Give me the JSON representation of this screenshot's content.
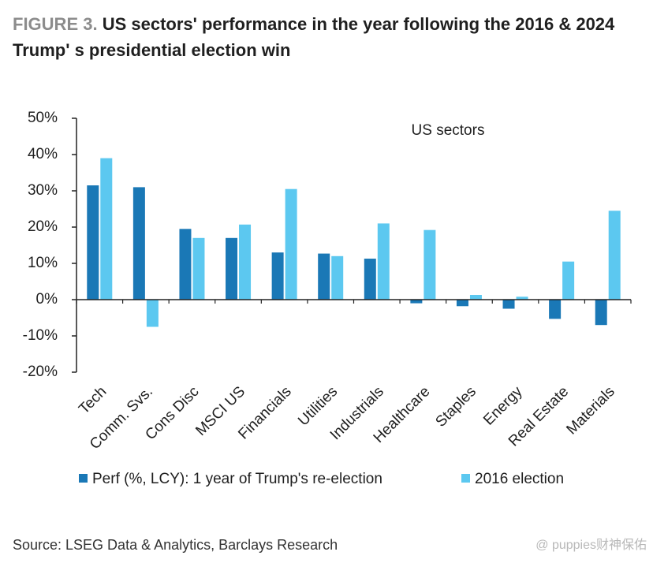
{
  "chart_data": {
    "type": "bar",
    "title_label": "FIGURE 3.",
    "title": "US sectors' performance in the year following the 2016 & 2024 Trump' s presidential election win",
    "annotation": "US sectors",
    "categories": [
      "Tech",
      "Comm. Svs.",
      "Cons Disc",
      "MSCI US",
      "Financials",
      "Utilities",
      "Industrials",
      "Healthcare",
      "Staples",
      "Energy",
      "Real Estate",
      "Materials"
    ],
    "series": [
      {
        "name": "Perf (%, LCY): 1 year of Trump's re-election",
        "color": "#1a78b6",
        "values": [
          31.5,
          31,
          19.5,
          17,
          13,
          12.7,
          11.3,
          -1,
          -1.8,
          -2.5,
          -5.3,
          -7
        ]
      },
      {
        "name": "2016 election",
        "color": "#5cc8f0",
        "values": [
          39,
          -7.5,
          17,
          20.7,
          30.5,
          12,
          21,
          19.2,
          1.3,
          0.8,
          10.5,
          24.5
        ]
      }
    ],
    "ylim": [
      -20,
      50
    ],
    "yticks": [
      {
        "value": -20,
        "label": "-20%"
      },
      {
        "value": -10,
        "label": "-10%"
      },
      {
        "value": 0,
        "label": "0%"
      },
      {
        "value": 10,
        "label": "10%"
      },
      {
        "value": 20,
        "label": "20%"
      },
      {
        "value": 30,
        "label": "30%"
      },
      {
        "value": 40,
        "label": "40%"
      },
      {
        "value": 50,
        "label": "50%"
      }
    ],
    "grid": false,
    "source": "Source: LSEG Data & Analytics, Barclays Research",
    "watermark": "@ puppies财神保佑"
  }
}
